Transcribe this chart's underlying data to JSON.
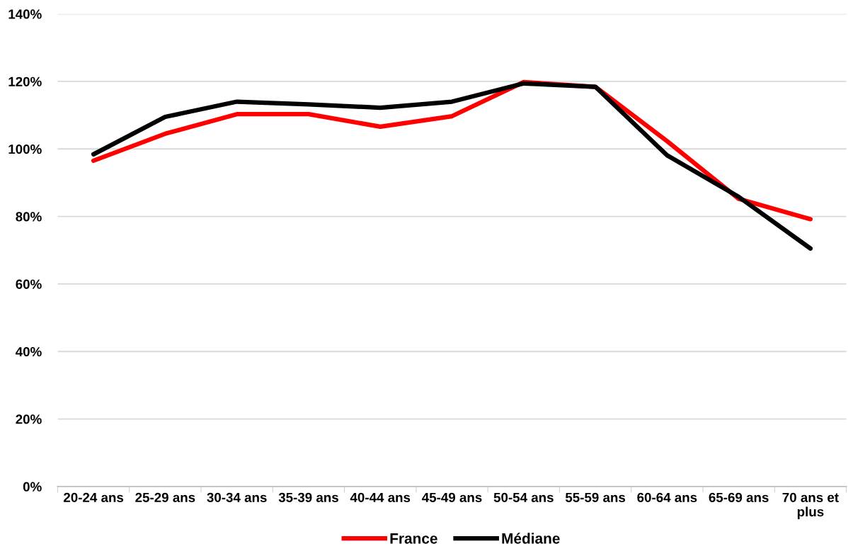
{
  "chart_data": {
    "type": "line",
    "categories": [
      "20-24 ans",
      "25-29 ans",
      "30-34 ans",
      "35-39 ans",
      "40-44 ans",
      "45-49 ans",
      "50-54 ans",
      "55-59 ans",
      "60-64 ans",
      "65-69 ans",
      "70 ans et plus"
    ],
    "series": [
      {
        "name": "France",
        "color": "#ff0000",
        "values": [
          96.5,
          104.5,
          110.3,
          110.3,
          106.6,
          109.7,
          119.8,
          118.4,
          102.3,
          85.2,
          79.2
        ]
      },
      {
        "name": "Médiane",
        "color": "#000000",
        "values": [
          98.4,
          109.5,
          114.0,
          113.2,
          112.2,
          114.0,
          119.4,
          118.4,
          98.1,
          85.8,
          70.5
        ]
      }
    ],
    "ylim": [
      0,
      140
    ],
    "yticks": [
      {
        "value": 0,
        "label": "0%"
      },
      {
        "value": 20,
        "label": "20%"
      },
      {
        "value": 40,
        "label": "40%"
      },
      {
        "value": 60,
        "label": "60%"
      },
      {
        "value": 80,
        "label": "80%"
      },
      {
        "value": 100,
        "label": "100%"
      },
      {
        "value": 120,
        "label": "120%"
      },
      {
        "value": 140,
        "label": "140%"
      }
    ],
    "grid": "y",
    "legend": "bottom",
    "marker": "none",
    "line_style": "solid"
  }
}
